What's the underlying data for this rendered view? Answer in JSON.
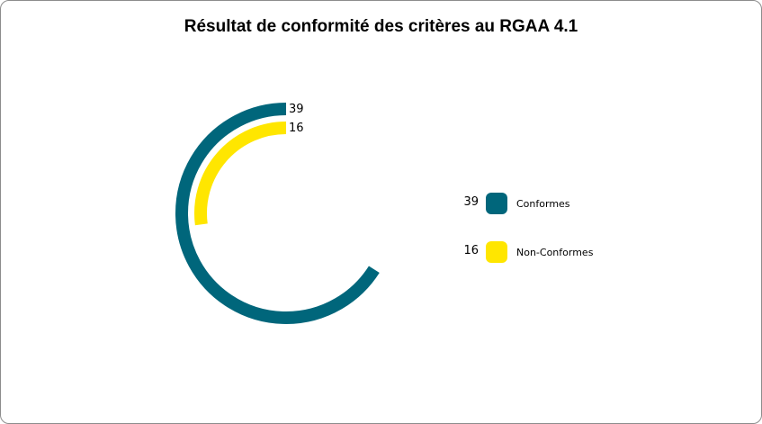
{
  "chart_data": {
    "type": "radial-bar",
    "title": "Résultat de conformité des critères au RGAA 4.1",
    "max": 55,
    "categories": [
      "Conformes",
      "Non-Conformes"
    ],
    "values": [
      39,
      16
    ],
    "colors": [
      "#00667b",
      "#ffe600"
    ],
    "legend": [
      {
        "label": "Conformes",
        "value": "39",
        "color": "#00667b"
      },
      {
        "label": "Non-Conformes",
        "value": "16",
        "color": "#ffe600"
      }
    ],
    "legend_position": "right"
  }
}
